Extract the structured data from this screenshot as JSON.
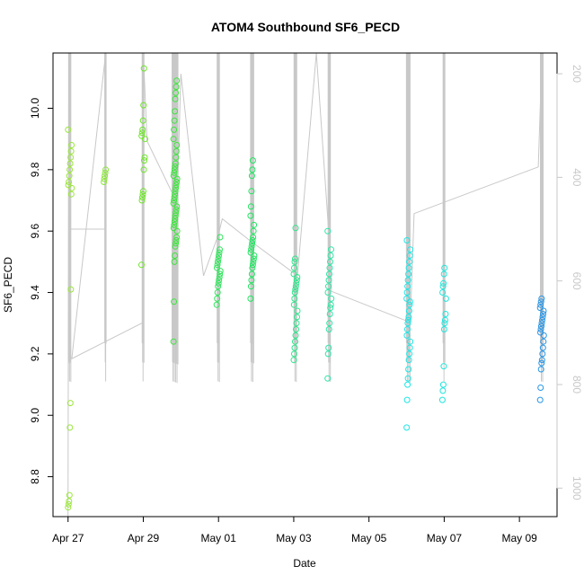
{
  "chart_data": {
    "type": "scatter",
    "title": "ATOM4 Southbound SF6_PECD",
    "xlabel": "Date",
    "ylabel": "SF6_PECD",
    "x_tick_labels": [
      "Apr 27",
      "Apr 29",
      "May 01",
      "May 03",
      "May 05",
      "May 07",
      "May 09"
    ],
    "x_tick_days": [
      0,
      2,
      4,
      6,
      8,
      10,
      12
    ],
    "xlim_days": [
      -0.4,
      13.0
    ],
    "ylim": [
      8.67,
      10.18
    ],
    "y_ticks": [
      8.8,
      9.0,
      9.2,
      9.4,
      9.6,
      9.8,
      10.0
    ],
    "y_tick_labels": [
      "8.8",
      "9.0",
      "9.2",
      "9.4",
      "9.6",
      "9.8",
      "10.0"
    ],
    "right_axis": {
      "label": "",
      "ticks": [
        200,
        400,
        600,
        800,
        1000
      ],
      "tick_labels": [
        "200",
        "400",
        "600",
        "800",
        "1000"
      ],
      "lim_top": 160,
      "lim_bottom": 1055,
      "color": "#c8c8c8"
    },
    "point_color_scale": "earlier points green, later points cyan to blue",
    "grid": false,
    "legend": "none",
    "flights": [
      {
        "day": 0.05,
        "values": [
          8.7,
          8.71,
          8.72,
          8.74,
          8.96,
          9.04,
          9.41,
          9.72,
          9.74,
          9.75,
          9.76,
          9.78,
          9.8,
          9.82,
          9.84,
          9.86,
          9.88,
          9.93
        ],
        "color": "#9be63c"
      },
      {
        "day": 1.0,
        "values": [
          9.76,
          9.77,
          9.78,
          9.79,
          9.8
        ],
        "color": "#8ce63c"
      },
      {
        "day": 2.0,
        "values": [
          9.49,
          9.7,
          9.71,
          9.72,
          9.73,
          9.8,
          9.83,
          9.84,
          9.9,
          9.91,
          9.92,
          9.93,
          9.96,
          10.01,
          10.13
        ],
        "color": "#6ee62a"
      },
      {
        "day": 2.85,
        "values": [
          9.24,
          9.37,
          9.5,
          9.52,
          9.55,
          9.56,
          9.57,
          9.58,
          9.6,
          9.61,
          9.62,
          9.63,
          9.64,
          9.65,
          9.66,
          9.67,
          9.68,
          9.69,
          9.7,
          9.71,
          9.72,
          9.73,
          9.74,
          9.75,
          9.76,
          9.77,
          9.78,
          9.79,
          9.8,
          9.81,
          9.82,
          9.84,
          9.86,
          9.88,
          9.9,
          9.93,
          9.96,
          9.99,
          10.03,
          10.05,
          10.07,
          10.09
        ],
        "color": "#3ce63c"
      },
      {
        "day": 4.0,
        "values": [
          9.36,
          9.38,
          9.4,
          9.42,
          9.43,
          9.44,
          9.45,
          9.46,
          9.47,
          9.48,
          9.49,
          9.5,
          9.51,
          9.52,
          9.53,
          9.54,
          9.58
        ],
        "color": "#2ee65a"
      },
      {
        "day": 4.9,
        "values": [
          9.38,
          9.42,
          9.44,
          9.46,
          9.48,
          9.49,
          9.5,
          9.51,
          9.52,
          9.53,
          9.54,
          9.55,
          9.56,
          9.57,
          9.58,
          9.6,
          9.62,
          9.65,
          9.68,
          9.73,
          9.78,
          9.8,
          9.83
        ],
        "color": "#1fe65f"
      },
      {
        "day": 6.05,
        "values": [
          9.18,
          9.2,
          9.22,
          9.24,
          9.26,
          9.28,
          9.3,
          9.32,
          9.34,
          9.36,
          9.38,
          9.4,
          9.41,
          9.42,
          9.43,
          9.44,
          9.45,
          9.46,
          9.48,
          9.5,
          9.51,
          9.61
        ],
        "color": "#2ee68c"
      },
      {
        "day": 6.95,
        "values": [
          9.12,
          9.2,
          9.22,
          9.28,
          9.3,
          9.33,
          9.35,
          9.36,
          9.38,
          9.4,
          9.42,
          9.44,
          9.46,
          9.48,
          9.5,
          9.52,
          9.54,
          9.6
        ],
        "color": "#2ee6a5"
      },
      {
        "day": 9.05,
        "values": [
          8.96,
          9.05,
          9.1,
          9.12,
          9.15,
          9.18,
          9.2,
          9.22,
          9.24,
          9.26,
          9.28,
          9.3,
          9.31,
          9.32,
          9.34,
          9.36,
          9.37,
          9.38,
          9.4,
          9.42,
          9.44,
          9.46,
          9.48,
          9.5,
          9.52,
          9.54,
          9.57
        ],
        "color": "#1ee6e6"
      },
      {
        "day": 10.0,
        "values": [
          9.05,
          9.08,
          9.1,
          9.16,
          9.28,
          9.3,
          9.31,
          9.33,
          9.38,
          9.4,
          9.42,
          9.43,
          9.46,
          9.48
        ],
        "color": "#1ee6dc"
      },
      {
        "day": 12.6,
        "values": [
          9.05,
          9.09,
          9.15,
          9.17,
          9.18,
          9.2,
          9.22,
          9.24,
          9.26,
          9.27,
          9.28,
          9.29,
          9.3,
          9.31,
          9.32,
          9.33,
          9.34,
          9.35,
          9.36,
          9.37,
          9.38
        ],
        "color": "#2896e6"
      }
    ],
    "altitude_track": [
      [
        0.0,
        1060
      ],
      [
        0.02,
        160
      ],
      [
        0.04,
        760
      ],
      [
        0.05,
        500
      ],
      [
        1.0,
        500
      ],
      [
        1.0,
        160
      ],
      [
        0.1,
        750
      ],
      [
        2.0,
        680
      ],
      [
        2.0,
        160
      ],
      [
        2.1,
        330
      ],
      [
        2.9,
        450
      ],
      [
        3.0,
        200
      ],
      [
        3.6,
        590
      ],
      [
        4.0,
        510
      ],
      [
        4.1,
        480
      ],
      [
        4.8,
        520
      ],
      [
        6.1,
        590
      ],
      [
        6.6,
        160
      ],
      [
        7.0,
        580
      ],
      [
        7.0,
        620
      ],
      [
        9.1,
        680
      ],
      [
        9.2,
        470
      ],
      [
        12.5,
        380
      ],
      [
        12.6,
        160
      ]
    ]
  }
}
